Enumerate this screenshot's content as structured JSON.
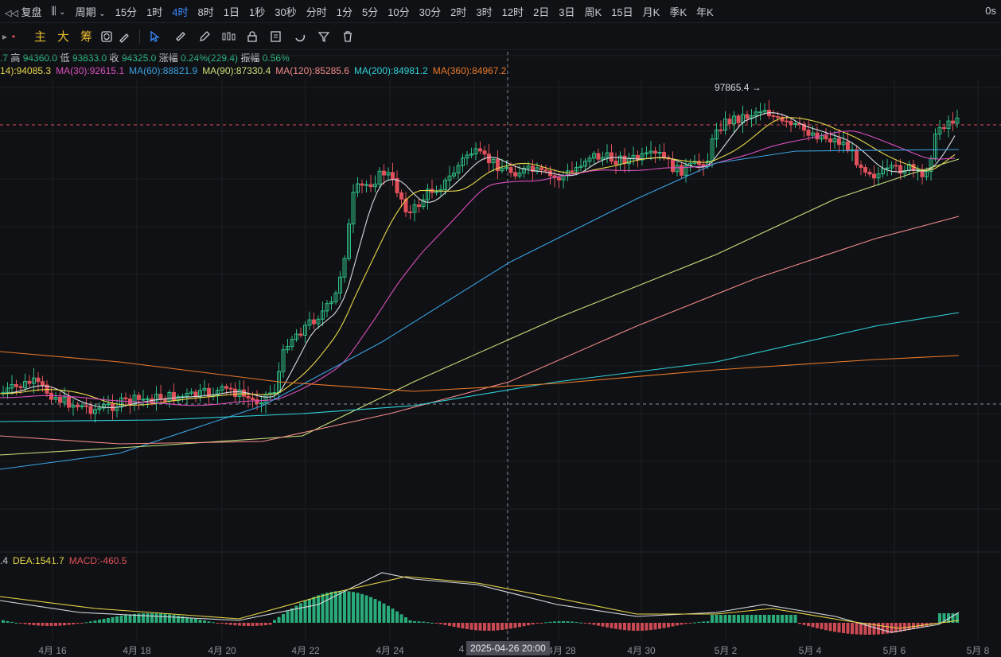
{
  "toolbar_top": {
    "replay_label": "复盘",
    "period_label": "周期",
    "periods": [
      "15分",
      "1时",
      "4时",
      "8时",
      "1日",
      "1秒",
      "30秒",
      "分时",
      "1分",
      "5分",
      "10分",
      "30分",
      "2时",
      "3时",
      "12时",
      "2日",
      "3日",
      "周K",
      "15日",
      "月K",
      "季K",
      "年K"
    ],
    "active_period": "4时",
    "countdown": "0s"
  },
  "toolbar_draw": {
    "chars": [
      "主",
      "大",
      "筹"
    ]
  },
  "ohlc": {
    "prefix": ".7",
    "high_label": "高",
    "high": "94360.0",
    "low_label": "低",
    "low": "93833.0",
    "close_label": "收",
    "close": "94325.0",
    "change_label": "涨幅",
    "change": "0.24%(229.4)",
    "amp_label": "振幅",
    "amp": "0.56%"
  },
  "ma_legend": [
    {
      "text": "14):94085.3",
      "color": "#e8d84a"
    },
    {
      "text": "MA(30):92615.1",
      "color": "#d94fbd"
    },
    {
      "text": "MA(60):88821.9",
      "color": "#3aa0e0"
    },
    {
      "text": "MA(90):87330.4",
      "color": "#c6e07a"
    },
    {
      "text": "MA(120):85285.6",
      "color": "#f08a8a"
    },
    {
      "text": "MA(200):84981.2",
      "color": "#2fd1d8"
    },
    {
      "text": "MA(360):84967.2",
      "color": "#e8782a"
    }
  ],
  "macd_legend": [
    {
      "text": ".4",
      "color": "#c9ccd4"
    },
    {
      "text": "DEA:1541.7",
      "color": "#e8d84a"
    },
    {
      "text": "MACD:-460.5",
      "color": "#e0505a"
    }
  ],
  "peak_label": "97865.4 →",
  "crosshair_time": "2025-04-26 20:00",
  "x_labels": [
    "4月 16",
    "4月 18",
    "4月 20",
    "4月 22",
    "4月 24",
    "4",
    "4月 28",
    "4月 30",
    "5月 2",
    "5月 4",
    "5月 6",
    "5月 8"
  ],
  "colors": {
    "up": "#2ebd85",
    "down": "#e0505a",
    "bg": "#101114",
    "grid": "#1d1f25"
  },
  "chart_data": {
    "type": "candlestick",
    "peak_high": 97865.4,
    "last_close": 94325.0
  }
}
